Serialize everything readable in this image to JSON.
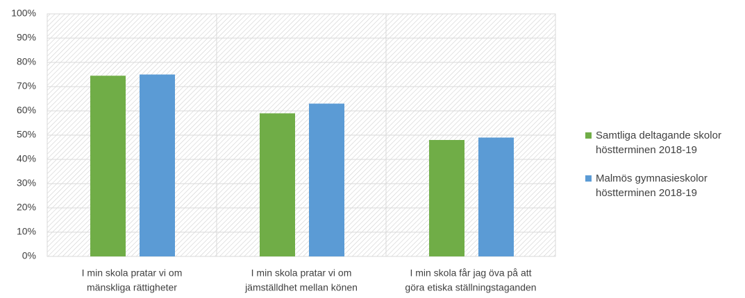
{
  "chart_data": {
    "type": "bar",
    "categories": [
      [
        "I min skola pratar vi om",
        "mänskliga rättigheter"
      ],
      [
        "I min skola pratar vi om",
        "jämställdhet mellan könen"
      ],
      [
        "I min skola får jag öva på att",
        "göra etiska ställningstaganden"
      ]
    ],
    "series": [
      {
        "name": "Samtliga deltagande skolor höstterminen 2018-19",
        "color": "#70ad47",
        "values": [
          74.5,
          59,
          48
        ]
      },
      {
        "name": "Malmös gymnasieskolor höstterminen 2018-19",
        "color": "#5b9bd5",
        "values": [
          75,
          63,
          49
        ]
      }
    ],
    "ylim": [
      0,
      100
    ],
    "yticks": [
      {
        "value": 0,
        "label": "0%"
      },
      {
        "value": 10,
        "label": "10%"
      },
      {
        "value": 20,
        "label": "20%"
      },
      {
        "value": 30,
        "label": "30%"
      },
      {
        "value": 40,
        "label": "40%"
      },
      {
        "value": 50,
        "label": "50%"
      },
      {
        "value": 60,
        "label": "60%"
      },
      {
        "value": 70,
        "label": "70%"
      },
      {
        "value": 80,
        "label": "80%"
      },
      {
        "value": 90,
        "label": "90%"
      },
      {
        "value": 100,
        "label": "100%"
      }
    ],
    "grid": true,
    "legend": "right"
  }
}
